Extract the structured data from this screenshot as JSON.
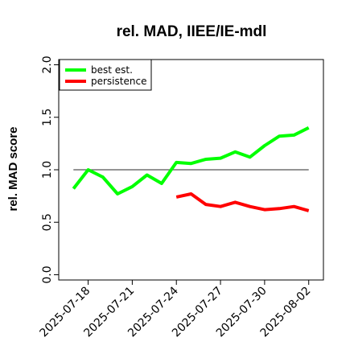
{
  "chart_data": {
    "type": "line",
    "title": "rel. MAD, IIEE/IE-mdl",
    "ylabel": "rel. MAD score",
    "xlabel": "",
    "ylim": [
      -0.05,
      2.05
    ],
    "yticks": [
      "0.0",
      "0.5",
      "1.0",
      "1.5",
      "2.0"
    ],
    "xticks": [
      "2025-07-18",
      "2025-07-21",
      "2025-07-24",
      "2025-07-27",
      "2025-07-30",
      "2025-08-02"
    ],
    "xlim": [
      "2025-07-16",
      "2025-08-03"
    ],
    "reference_line": 1.0,
    "legend_position": "top-left",
    "series": [
      {
        "name": "best est.",
        "color": "#00ff00",
        "x": [
          "2025-07-17",
          "2025-07-18",
          "2025-07-19",
          "2025-07-20",
          "2025-07-21",
          "2025-07-22",
          "2025-07-23",
          "2025-07-24",
          "2025-07-25",
          "2025-07-26",
          "2025-07-27",
          "2025-07-28",
          "2025-07-29",
          "2025-07-30",
          "2025-07-31",
          "2025-08-01",
          "2025-08-02"
        ],
        "values": [
          0.82,
          1.0,
          0.93,
          0.77,
          0.84,
          0.95,
          0.87,
          1.07,
          1.06,
          1.1,
          1.11,
          1.17,
          1.12,
          1.23,
          1.32,
          1.33,
          1.4
        ]
      },
      {
        "name": "persistence",
        "color": "#ff0000",
        "x": [
          "2025-07-24",
          "2025-07-25",
          "2025-07-26",
          "2025-07-27",
          "2025-07-28",
          "2025-07-29",
          "2025-07-30",
          "2025-07-31",
          "2025-08-01",
          "2025-08-02"
        ],
        "values": [
          0.74,
          0.77,
          0.67,
          0.65,
          0.69,
          0.65,
          0.62,
          0.63,
          0.65,
          0.61
        ]
      }
    ]
  }
}
